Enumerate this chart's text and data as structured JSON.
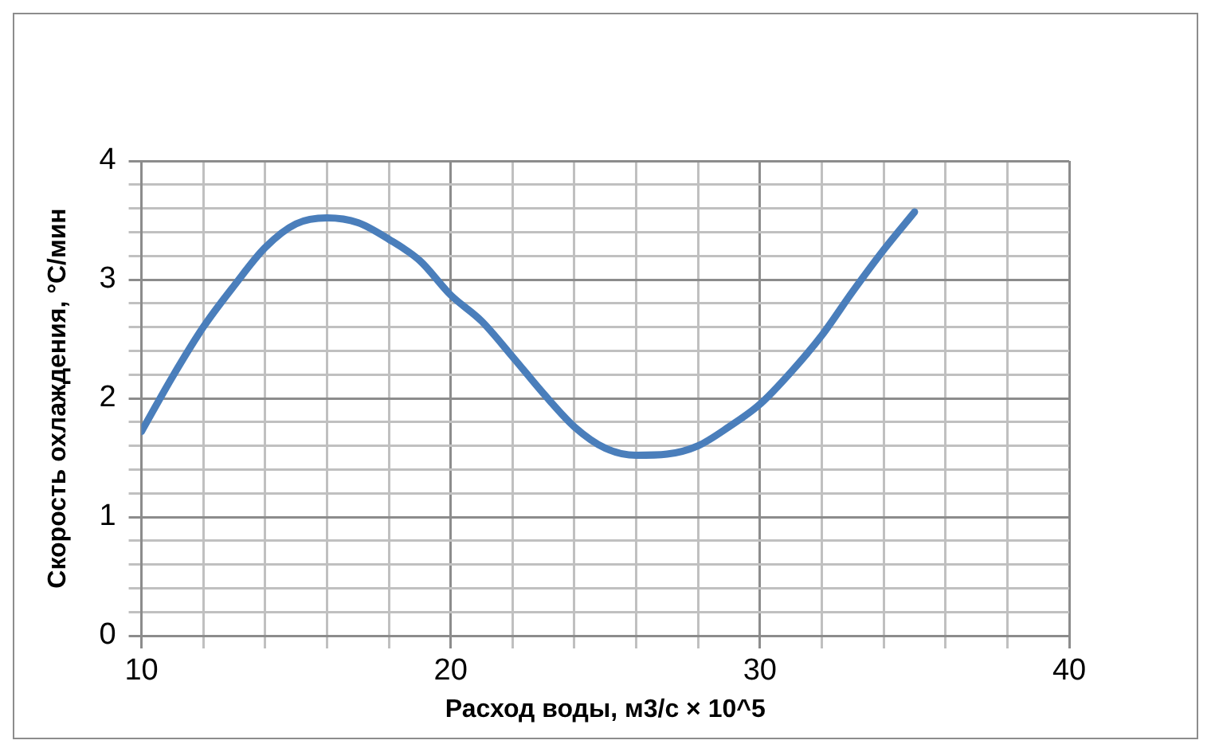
{
  "chart_data": {
    "type": "line",
    "xlabel": "Расход воды, м3/с × 10^5",
    "ylabel": "Скорость охлаждения, °С/мин",
    "series": [
      {
        "color": "#4a7ebb",
        "x": [
          10,
          11,
          12,
          13,
          14,
          15,
          16,
          17,
          18,
          19,
          20,
          21,
          22,
          23,
          24,
          25,
          26,
          27,
          28,
          29,
          30,
          31,
          32,
          33,
          34,
          35
        ],
        "values": [
          1.72,
          2.18,
          2.6,
          2.95,
          3.27,
          3.47,
          3.52,
          3.48,
          3.34,
          3.16,
          2.87,
          2.65,
          2.35,
          2.04,
          1.76,
          1.58,
          1.52,
          1.53,
          1.6,
          1.76,
          1.95,
          2.22,
          2.53,
          2.9,
          3.25,
          3.57
        ]
      }
    ],
    "xlim": [
      10,
      40
    ],
    "xticks": [
      10,
      {
        "value": 12,
        "label": null
      },
      {
        "value": 14,
        "label": null
      },
      {
        "value": 16,
        "label": null
      },
      {
        "value": 18,
        "label": null
      },
      20,
      {
        "value": 22,
        "label": null
      },
      {
        "value": 24,
        "label": null
      },
      {
        "value": 26,
        "label": null
      },
      {
        "value": 28,
        "label": null
      },
      30,
      {
        "value": 32,
        "label": null
      },
      {
        "value": 34,
        "label": null
      },
      {
        "value": 36,
        "label": null
      },
      {
        "value": 38,
        "label": null
      },
      40
    ],
    "ylim": [
      0,
      4
    ],
    "yticks": [
      0,
      {
        "value": 0.2,
        "label": null
      },
      {
        "value": 0.4,
        "label": null
      },
      {
        "value": 0.6,
        "label": null
      },
      {
        "value": 0.8,
        "label": null
      },
      1,
      {
        "value": 1.2,
        "label": null
      },
      {
        "value": 1.4,
        "label": null
      },
      {
        "value": 1.6,
        "label": null
      },
      {
        "value": 1.8,
        "label": null
      },
      2,
      {
        "value": 2.2,
        "label": null
      },
      {
        "value": 2.4,
        "label": null
      },
      {
        "value": 2.6,
        "label": null
      },
      {
        "value": 2.8,
        "label": null
      },
      3,
      {
        "value": 3.2,
        "label": null
      },
      {
        "value": 3.4,
        "label": null
      },
      {
        "value": 3.6,
        "label": null
      },
      {
        "value": 3.8,
        "label": null
      },
      4
    ],
    "grid": true,
    "legend": false,
    "marker": "none",
    "line_style": "solid"
  }
}
